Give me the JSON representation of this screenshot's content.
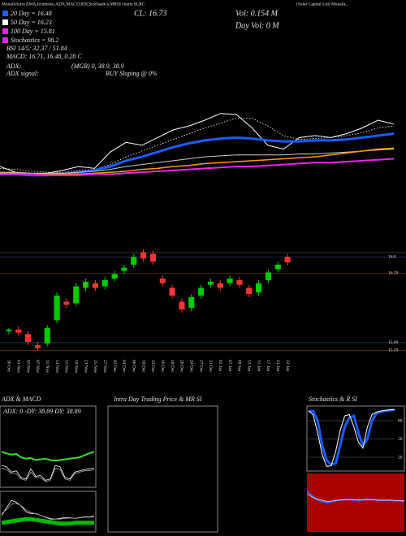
{
  "header": {
    "title": "MunafaSutra EMA,Ichimoku,ADX,MACD,RSI,Stochastics,MRSI charts SLRC",
    "company": "(Solar Capital Ltd) Munafa...",
    "ema20": "20 Day = 16.48",
    "ema50": "50 Day = 16.23",
    "ema100": "100 Day = 15.81",
    "stoch": "Stochastics = 98.2",
    "rsi": "RSI 14/5: 32.37 / 51.84",
    "macd": "MACD: 16.71, 16.48, 0.28 C",
    "adx": "ADX:",
    "mgr": "(MGR) 0, 38.9, 38.9",
    "adx_signal": "ADX signal:",
    "buy": "BUY Sloping @ 0%",
    "close": "CL: 16.73",
    "vol": "Vol: 0.154 M",
    "day_vol": "Day Vol: 0 M",
    "intraday_title": "Intra Day Trading Price & MR SI"
  },
  "chart_data": [
    {
      "type": "line",
      "ylim": [
        15.0,
        17.4
      ],
      "series": [
        {
          "color": "#ffffff",
          "width": 1,
          "values": [
            15.8,
            15.74,
            15.72,
            15.73,
            15.76,
            15.8,
            15.78,
            15.95,
            16.05,
            16.02,
            16.1,
            16.18,
            16.22,
            16.28,
            16.35,
            16.34,
            16.2,
            16.02,
            15.98,
            16.1,
            16.12,
            16.1,
            16.14,
            16.2,
            16.28,
            16.24
          ]
        },
        {
          "color": "#ffffff",
          "width": 0.8,
          "style": "dotted",
          "values": [
            15.78,
            15.77,
            15.75,
            15.74,
            15.74,
            15.76,
            15.77,
            15.82,
            15.9,
            15.96,
            16.02,
            16.08,
            16.14,
            16.2,
            16.25,
            16.3,
            16.3,
            16.22,
            16.12,
            16.08,
            16.09,
            16.1,
            16.12,
            16.15,
            16.2,
            16.22
          ]
        },
        {
          "color": "#1a5cff",
          "width": 3,
          "values": [
            15.72,
            15.72,
            15.71,
            15.71,
            15.72,
            15.74,
            15.76,
            15.8,
            15.86,
            15.9,
            15.95,
            16.0,
            16.04,
            16.07,
            16.09,
            16.1,
            16.09,
            16.07,
            16.06,
            16.06,
            16.07,
            16.07,
            16.08,
            16.1,
            16.12,
            16.14
          ]
        },
        {
          "color": "#cccccc",
          "width": 1,
          "values": [
            15.74,
            15.74,
            15.73,
            15.73,
            15.73,
            15.74,
            15.75,
            15.77,
            15.8,
            15.82,
            15.84,
            15.86,
            15.88,
            15.9,
            15.91,
            15.92,
            15.92,
            15.92,
            15.92,
            15.93,
            15.93,
            15.94,
            15.95,
            15.96,
            15.97,
            15.98
          ]
        },
        {
          "color": "#ff9900",
          "width": 1.5,
          "values": [
            15.73,
            15.73,
            15.72,
            15.72,
            15.72,
            15.72,
            15.73,
            15.74,
            15.75,
            15.77,
            15.78,
            15.8,
            15.81,
            15.83,
            15.84,
            15.85,
            15.86,
            15.87,
            15.88,
            15.89,
            15.9,
            15.92,
            15.94,
            15.96,
            15.98,
            15.99
          ]
        },
        {
          "color": "#ee22ee",
          "width": 2,
          "values": [
            15.72,
            15.72,
            15.72,
            15.71,
            15.71,
            15.71,
            15.72,
            15.72,
            15.73,
            15.74,
            15.75,
            15.76,
            15.77,
            15.78,
            15.79,
            15.8,
            15.8,
            15.81,
            15.82,
            15.83,
            15.84,
            15.84,
            15.85,
            15.86,
            15.87,
            15.88
          ]
        }
      ]
    },
    {
      "type": "candlestick",
      "ylim": [
        15.5,
        16.92
      ],
      "yticks": [
        16.8,
        16.59,
        15.69,
        15.59
      ],
      "up_color": "#00cc00",
      "down_color": "#ff3333",
      "categories": [
        "30 Oct",
        "01 Nov",
        "05 Nov",
        "07 Nov",
        "11 Nov",
        "13 Nov",
        "15 Nov",
        "19 Nov",
        "21 Nov",
        "25 Nov",
        "27 Nov",
        "02 Dec",
        "04 Dec",
        "06 Dec",
        "10 Dec",
        "12 Dec",
        "16 Dec",
        "18 Dec",
        "20 Dec",
        "24 Dec",
        "27 Dec",
        "31 Dec",
        "03 Jan",
        "07 Jan",
        "09 Jan",
        "13 Jan",
        "15 Jan",
        "17 Jan",
        "21 Jan",
        "22 Jan"
      ],
      "open": [
        15.84,
        15.86,
        15.8,
        15.66,
        15.68,
        15.98,
        16.22,
        16.2,
        16.4,
        16.46,
        16.42,
        16.52,
        16.62,
        16.7,
        16.86,
        16.84,
        16.52,
        16.4,
        16.22,
        16.14,
        16.3,
        16.44,
        16.46,
        16.46,
        16.5,
        16.4,
        16.34,
        16.5,
        16.64,
        16.8
      ],
      "high": [
        15.88,
        15.9,
        15.84,
        15.7,
        15.92,
        16.34,
        16.26,
        16.46,
        16.52,
        16.5,
        16.54,
        16.62,
        16.7,
        16.84,
        16.9,
        16.88,
        16.56,
        16.44,
        16.26,
        16.32,
        16.44,
        16.52,
        16.5,
        16.56,
        16.54,
        16.44,
        16.5,
        16.64,
        16.74,
        16.84
      ],
      "low": [
        15.8,
        15.78,
        15.66,
        15.58,
        15.64,
        15.94,
        16.14,
        16.16,
        16.36,
        16.36,
        16.38,
        16.48,
        16.58,
        16.66,
        16.74,
        16.7,
        16.42,
        16.26,
        16.08,
        16.1,
        16.26,
        16.4,
        16.36,
        16.42,
        16.4,
        16.28,
        16.3,
        16.46,
        16.6,
        16.69
      ],
      "close": [
        15.86,
        15.82,
        15.7,
        15.62,
        15.88,
        16.3,
        16.18,
        16.42,
        16.48,
        16.4,
        16.5,
        16.58,
        16.66,
        16.8,
        16.78,
        16.74,
        16.46,
        16.3,
        16.12,
        16.28,
        16.4,
        16.48,
        16.4,
        16.52,
        16.44,
        16.32,
        16.46,
        16.6,
        16.7,
        16.73
      ]
    },
    {
      "type": "line",
      "title": "ADX & MACD",
      "annotation": "ADX: 0 -DY: 38.89 DY: 38.89",
      "ylim": [
        0,
        100
      ],
      "series": [
        {
          "color": "#33dd33",
          "width": 2,
          "values": [
            50,
            48,
            46,
            47,
            42,
            40,
            41,
            38,
            39,
            40,
            38,
            37,
            38,
            39,
            40,
            41,
            42,
            45,
            48,
            50
          ]
        },
        {
          "color": "#ffffff",
          "width": 0.8,
          "values": [
            30,
            28,
            20,
            22,
            12,
            10,
            25,
            14,
            15,
            8,
            10,
            30,
            28,
            12,
            10,
            20,
            22,
            24,
            25,
            26
          ]
        },
        {
          "color": "#aaaaaa",
          "width": 0.8,
          "values": [
            26,
            24,
            18,
            18,
            10,
            8,
            20,
            12,
            12,
            6,
            8,
            26,
            24,
            10,
            8,
            18,
            20,
            22,
            22,
            24
          ]
        }
      ]
    },
    {
      "type": "line",
      "ylim": [
        0,
        100
      ],
      "series": [
        {
          "color": "#00bb00",
          "width": 5,
          "values": [
            20,
            22,
            24,
            26,
            28,
            30,
            30,
            28,
            26,
            24,
            22,
            20,
            18,
            18,
            18,
            20,
            20,
            20,
            20,
            20
          ]
        },
        {
          "color": "#ffffff",
          "width": 0.8,
          "values": [
            40,
            60,
            80,
            75,
            65,
            50,
            45,
            45,
            40,
            35,
            30,
            30,
            32,
            34,
            34,
            32,
            34,
            36,
            36,
            38
          ]
        },
        {
          "color": "#999999",
          "width": 0.8,
          "values": [
            45,
            55,
            70,
            72,
            66,
            55,
            48,
            44,
            40,
            36,
            32,
            30,
            30,
            32,
            33,
            32,
            33,
            35,
            35,
            36
          ]
        }
      ]
    },
    {
      "type": "line",
      "title": "Stochastics & R SI",
      "ylim": [
        0,
        100
      ],
      "yticks": [
        20,
        50,
        80
      ],
      "series": [
        {
          "color": "#1a5cff",
          "width": 3,
          "values": [
            95,
            96,
            80,
            40,
            15,
            8,
            10,
            40,
            70,
            85,
            88,
            60,
            40,
            50,
            80,
            92,
            95,
            96,
            97,
            98
          ]
        },
        {
          "color": "#ffffff",
          "width": 1,
          "values": [
            96,
            90,
            60,
            25,
            5,
            6,
            30,
            65,
            88,
            90,
            70,
            45,
            35,
            70,
            90,
            94,
            96,
            97,
            98,
            98
          ]
        }
      ]
    },
    {
      "type": "line",
      "ylim": [
        0,
        100
      ],
      "background": "#aa0000",
      "series": [
        {
          "color": "#3366ff",
          "width": 2,
          "values": [
            70,
            62,
            55,
            52,
            50,
            52,
            54,
            55,
            56,
            55,
            54,
            55,
            56,
            55,
            55,
            54,
            55,
            53,
            54,
            52
          ]
        },
        {
          "color": "#ffffff",
          "width": 0.6,
          "values": [
            65,
            60,
            56,
            54,
            52,
            53,
            54,
            55,
            55,
            55,
            55,
            55,
            55,
            55,
            54,
            54,
            54,
            54,
            53,
            53
          ]
        }
      ]
    }
  ]
}
